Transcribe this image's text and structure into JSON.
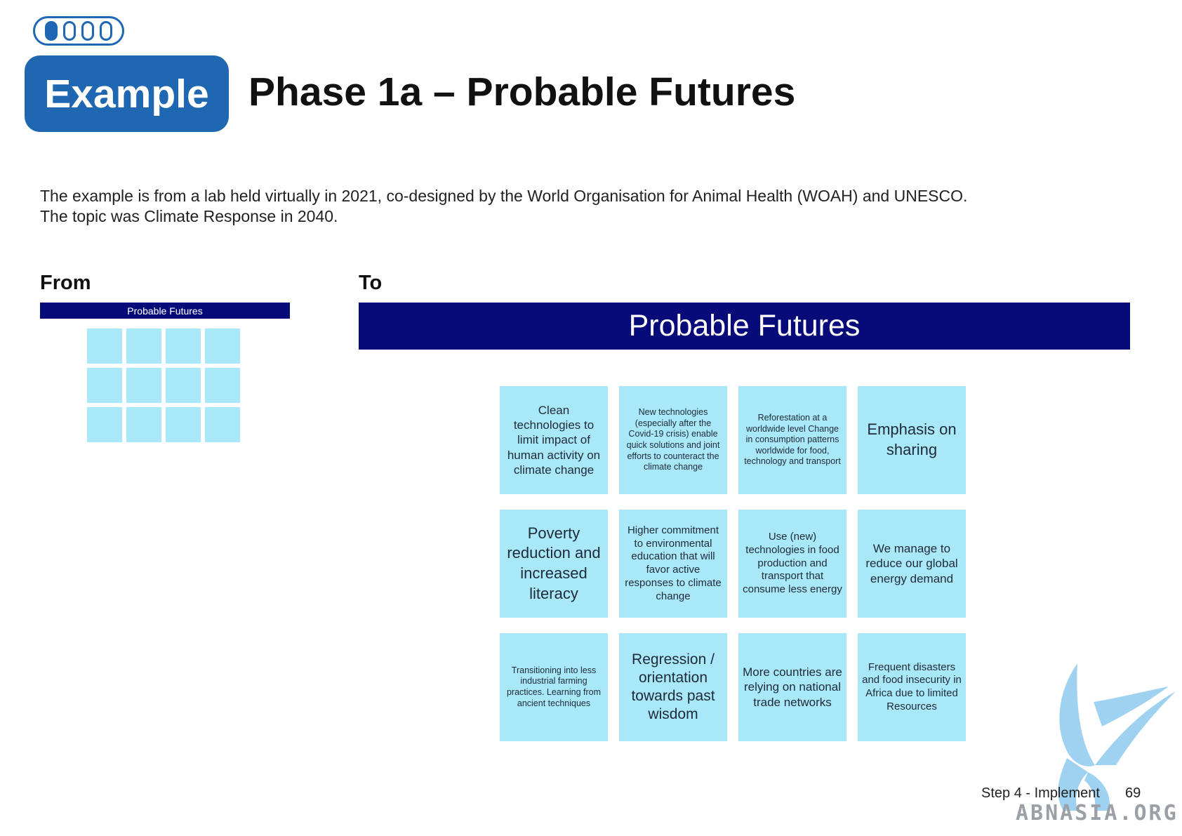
{
  "header": {
    "progress": {
      "total_steps": 4,
      "current_step": 1
    },
    "badge_label": "Example",
    "title": "Phase 1a – Probable Futures"
  },
  "intro": {
    "line1": "The example is from a lab held virtually in 2021, co-designed by the World Organisation for Animal Health (WOAH) and UNESCO.",
    "line2": "The topic was Climate Response in 2040."
  },
  "from": {
    "label": "From",
    "board_title": "Probable Futures",
    "empty_note_count": 12
  },
  "to": {
    "label": "To",
    "board_title": "Probable Futures",
    "notes": [
      "Clean technologies to limit impact of human activity on climate change",
      "New technologies (especially after the Covid-19 crisis) enable quick solutions and joint efforts to counteract the climate change",
      "Reforestation at a worldwide level Change in consumption patterns worldwide for food, technology and transport",
      "Emphasis on sharing",
      "Poverty reduction and increased literacy",
      "Higher commitment to environmental education that will favor active responses to climate change",
      "Use (new) technologies in food production and transport that consume less energy",
      "We manage to reduce our global energy demand",
      "Transitioning into less industrial farming practices. Learning from ancient techniques",
      "Regression / orientation towards past wisdom",
      "More countries are relying on national trade networks",
      "Frequent disasters and food insecurity in Africa due to limited Resources"
    ]
  },
  "footer": {
    "section": "Step 4 - Implement",
    "page_number": "69"
  },
  "watermark": {
    "text": "ABNASIA.ORG",
    "color": "#7fc4ec"
  },
  "colors": {
    "brand_blue": "#1f67b1",
    "board_header": "#070b7a",
    "sticky_note": "#a8e8f8"
  }
}
